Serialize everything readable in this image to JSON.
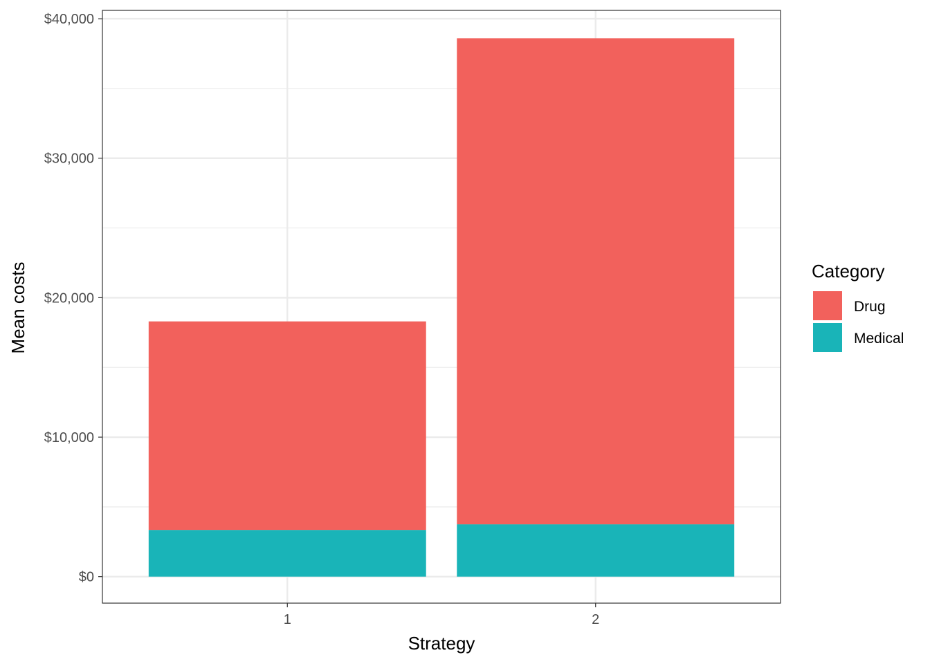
{
  "chart_data": {
    "type": "bar",
    "stacked": true,
    "categories": [
      "1",
      "2"
    ],
    "series": [
      {
        "name": "Medical",
        "values": [
          3350,
          3750
        ],
        "color": "#19b4b8"
      },
      {
        "name": "Drug",
        "values": [
          14950,
          34850
        ],
        "color": "#f2615c"
      }
    ],
    "xlabel": "Strategy",
    "ylabel": "Mean costs",
    "ylim": [
      -1900,
      40600
    ],
    "yticks": [
      0,
      10000,
      20000,
      30000,
      40000
    ],
    "ytick_labels": [
      "$0",
      "$10,000",
      "$20,000",
      "$30,000",
      "$40,000"
    ],
    "y_minor_ticks": [
      5000,
      15000,
      25000,
      35000
    ],
    "legend": {
      "title": "Category",
      "placement": "right",
      "items": [
        {
          "label": "Drug",
          "color": "#f2615c"
        },
        {
          "label": "Medical",
          "color": "#19b4b8"
        }
      ]
    },
    "grid": true,
    "theme": "bw"
  }
}
